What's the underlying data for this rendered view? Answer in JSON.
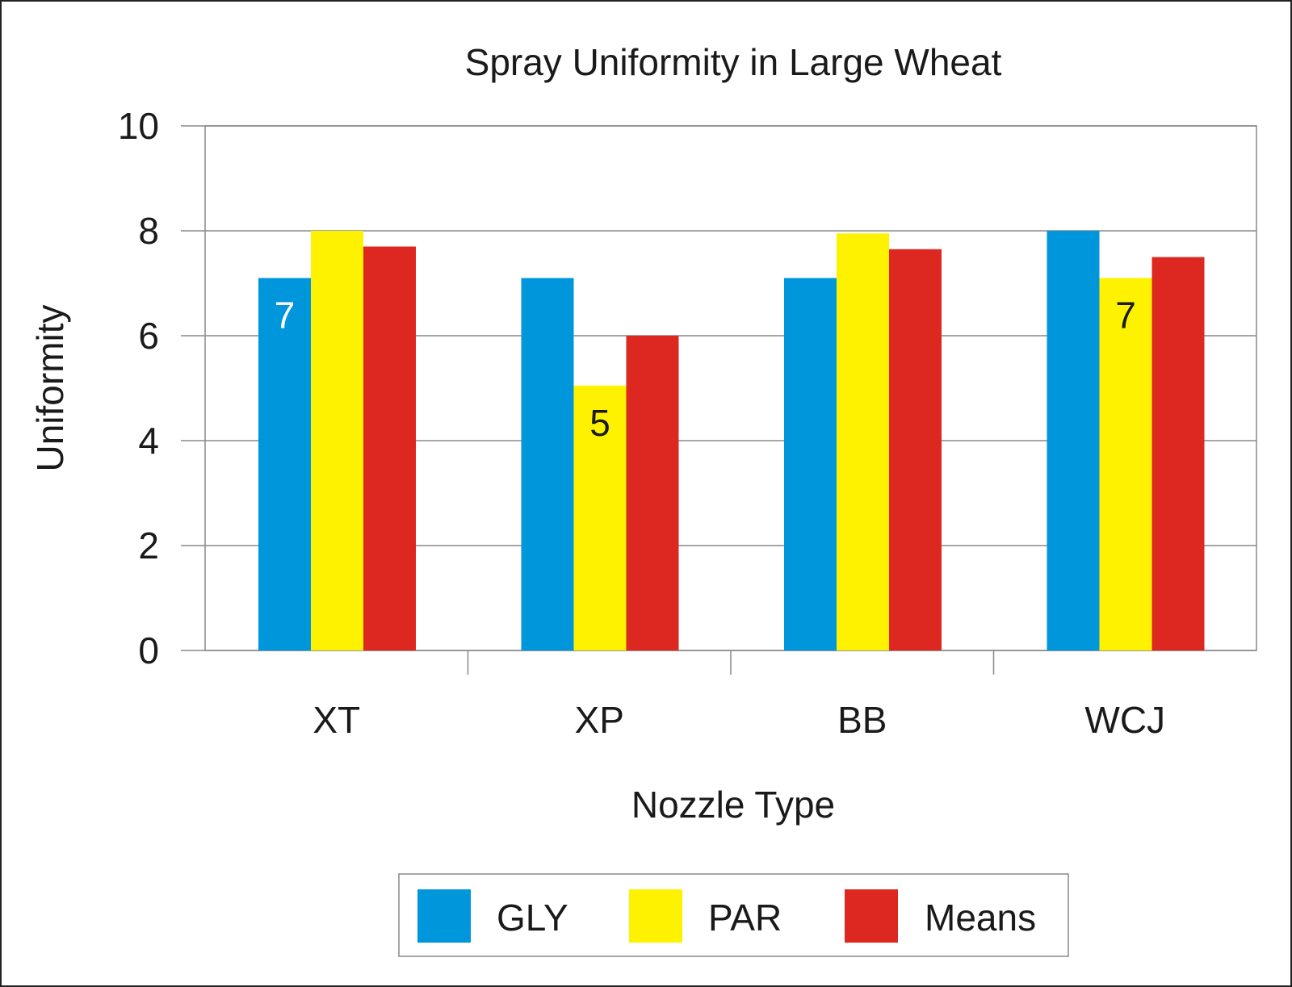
{
  "chart_data": {
    "type": "bar",
    "title": "Spray Uniformity in Large Wheat",
    "xlabel": "Nozzle Type",
    "ylabel": "Uniformity",
    "categories": [
      "XT",
      "XP",
      "BB",
      "WCJ"
    ],
    "ylim": [
      0,
      10
    ],
    "yticks": [
      "0",
      "2",
      "4",
      "6",
      "8",
      "10"
    ],
    "grid": true,
    "legend_position": "bottom",
    "series": [
      {
        "name": "GLY",
        "color": "#0096dc",
        "values": [
          7.1,
          7.1,
          7.1,
          8.0
        ]
      },
      {
        "name": "PAR",
        "color": "#fff200",
        "values": [
          8.0,
          5.05,
          7.95,
          7.1
        ]
      },
      {
        "name": "Means",
        "color": "#dc2820",
        "values": [
          7.7,
          6.0,
          7.65,
          7.5
        ]
      }
    ],
    "data_labels": [
      {
        "category": "XT",
        "series": "GLY",
        "text": "7",
        "color": "#ffffff"
      },
      {
        "category": "XP",
        "series": "PAR",
        "text": "5",
        "color": "#1a1a1a"
      },
      {
        "category": "WCJ",
        "series": "PAR",
        "text": "7",
        "color": "#1a1a1a"
      }
    ]
  }
}
